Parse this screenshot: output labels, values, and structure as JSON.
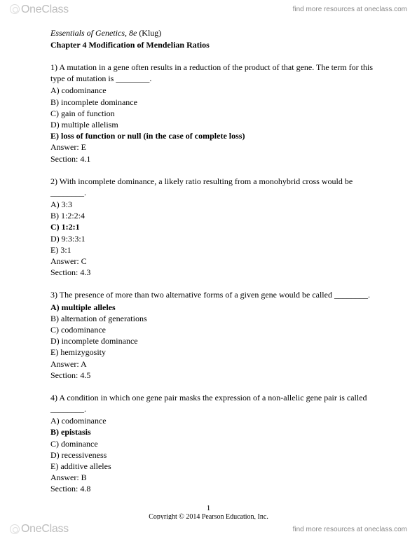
{
  "header": {
    "brand_one": "One",
    "brand_class": "Class",
    "find_more": "find more resources at oneclass.com"
  },
  "book": {
    "title_italic": "Essentials of Genetics, 8e",
    "author": " (Klug)",
    "chapter": "Chapter 4   Modification of Mendelian Ratios"
  },
  "questions": [
    {
      "text": "1) A mutation in a gene often results in a reduction of the product of that gene. The term for this type of mutation is ________.",
      "opts": [
        {
          "t": "A) codominance",
          "b": false
        },
        {
          "t": "B) incomplete dominance",
          "b": false
        },
        {
          "t": "C) gain of function",
          "b": false
        },
        {
          "t": "D) multiple allelism",
          "b": false
        },
        {
          "t": "E) loss of function or null (in the case of complete loss)",
          "b": true
        }
      ],
      "answer": "Answer:  E",
      "section": "Section:  4.1"
    },
    {
      "text": "2) With incomplete dominance, a likely ratio resulting from a monohybrid cross would be ________.",
      "opts": [
        {
          "t": "A) 3:3",
          "b": false
        },
        {
          "t": "B) 1:2:2:4",
          "b": false
        },
        {
          "t": "C) 1:2:1",
          "b": true
        },
        {
          "t": "D) 9:3:3:1",
          "b": false
        },
        {
          "t": "E) 3:1",
          "b": false
        }
      ],
      "answer": "Answer:  C",
      "section": "Section:  4.3"
    },
    {
      "text": "3) The presence of more than two alternative forms of a given gene would be called ________.",
      "opts": [
        {
          "t": "A) multiple alleles",
          "b": true
        },
        {
          "t": "B) alternation of generations",
          "b": false
        },
        {
          "t": "C) codominance",
          "b": false
        },
        {
          "t": "D) incomplete dominance",
          "b": false
        },
        {
          "t": "E) hemizygosity",
          "b": false
        }
      ],
      "answer": "Answer:  A",
      "section": "Section:  4.5"
    },
    {
      "text": "4) A condition in which one gene pair masks the expression of a non-allelic gene pair is called ________.",
      "opts": [
        {
          "t": "A) codominance",
          "b": false
        },
        {
          "t": "B) epistasis",
          "b": true
        },
        {
          "t": "C) dominance",
          "b": false
        },
        {
          "t": "D) recessiveness",
          "b": false
        },
        {
          "t": "E) additive alleles",
          "b": false
        }
      ],
      "answer": "Answer:  B",
      "section": "Section:  4.8"
    }
  ],
  "page_number": "1",
  "copyright": "Copyright © 2014 Pearson Education, Inc.",
  "footer": {
    "brand_one": "One",
    "brand_class": "Class",
    "find_more": "find more resources at oneclass.com"
  }
}
